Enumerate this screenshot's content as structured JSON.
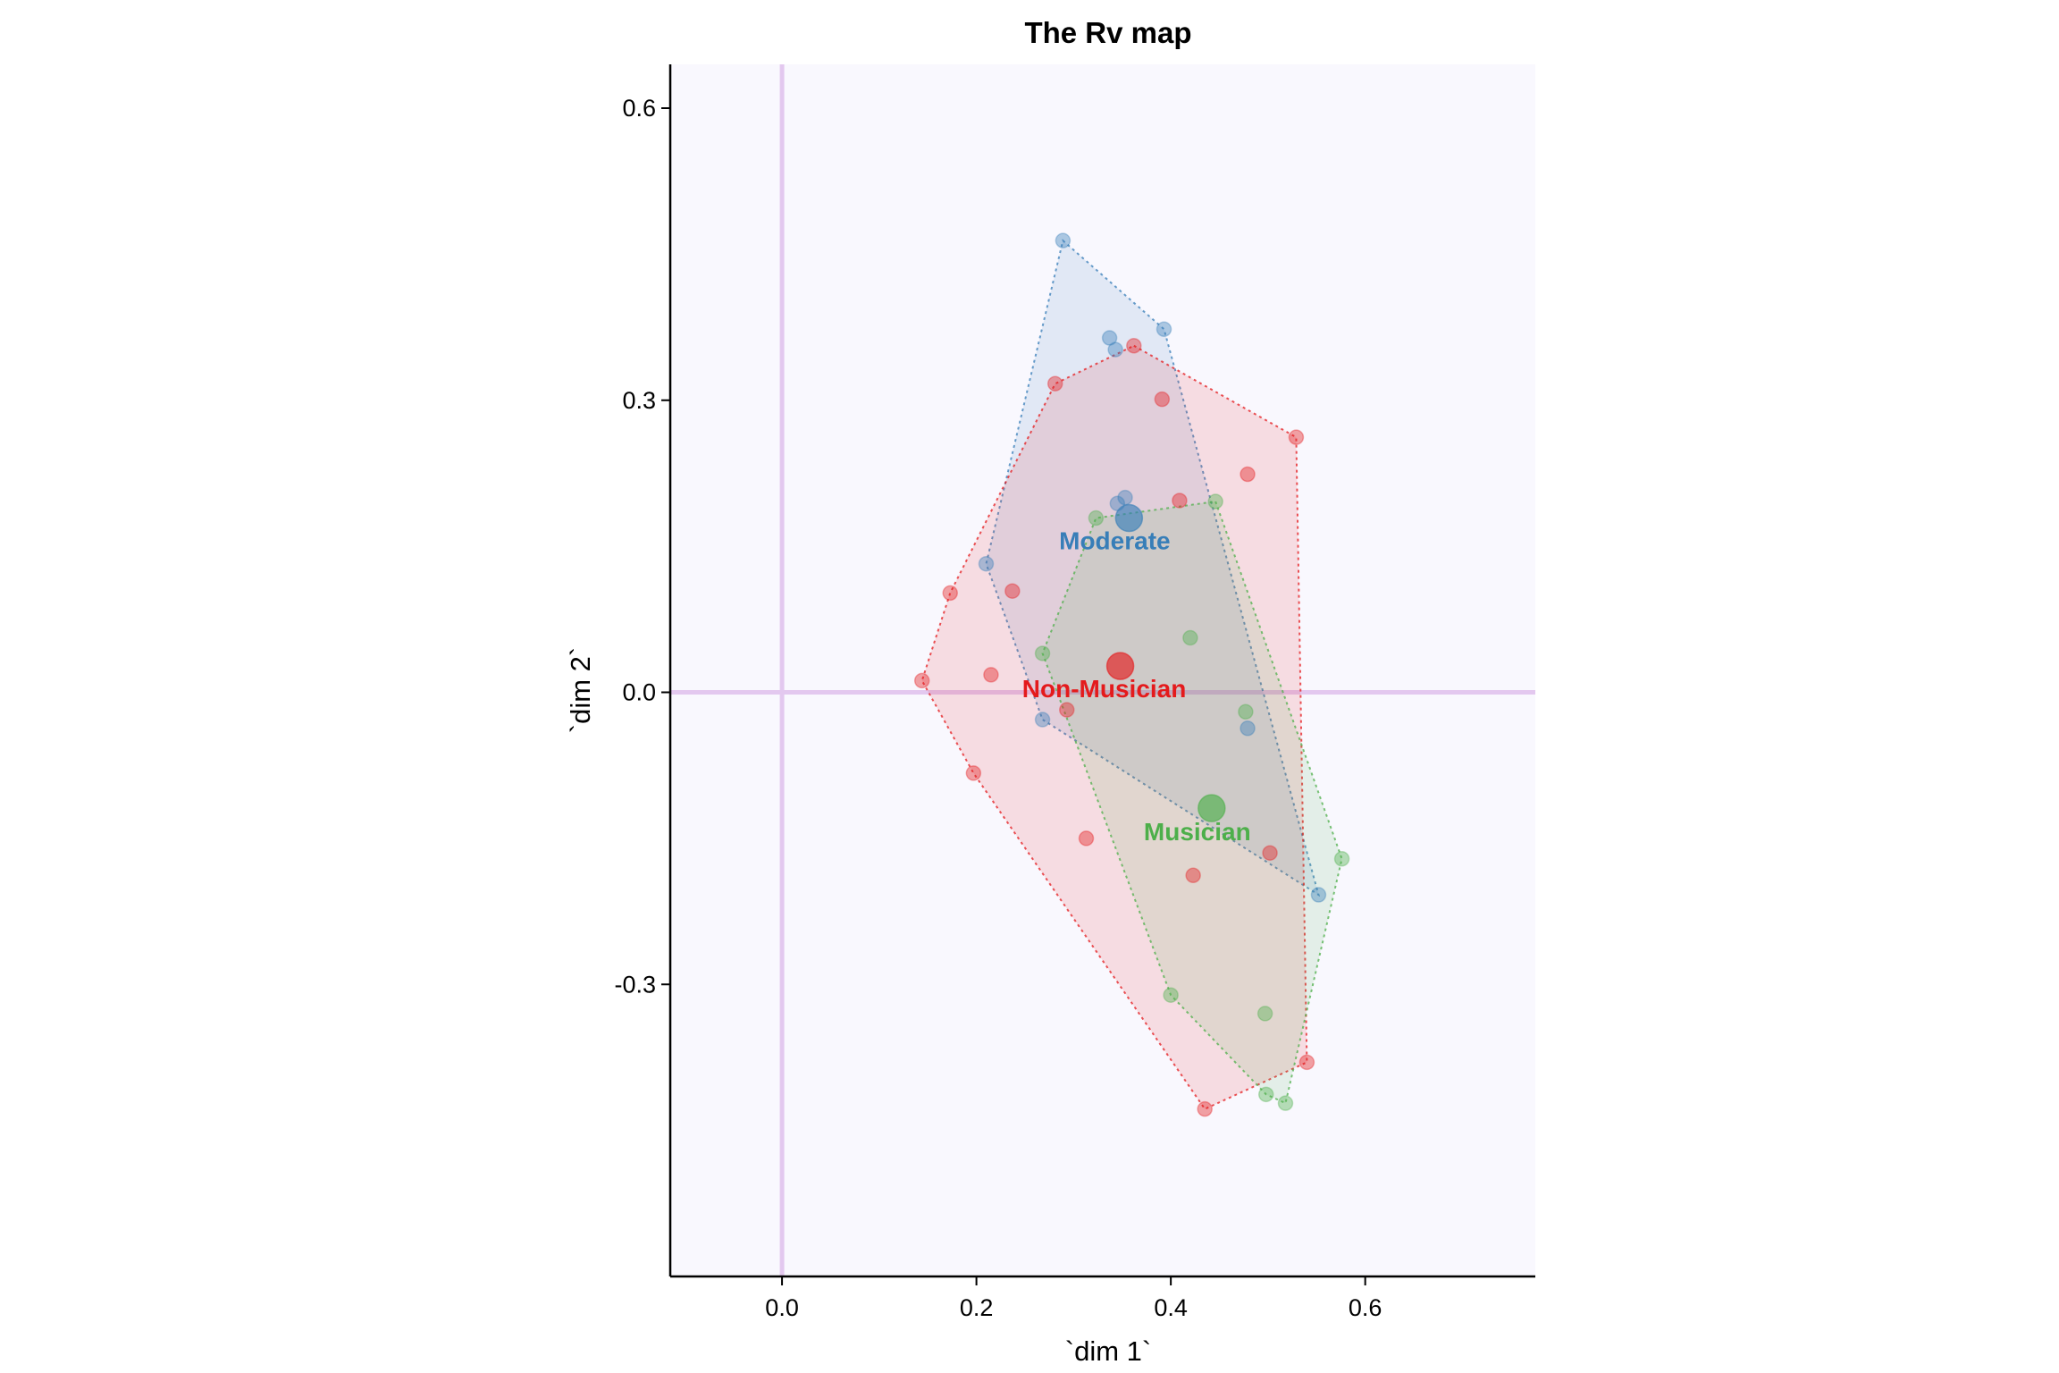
{
  "chart_data": {
    "type": "scatter",
    "title": "The Rv map",
    "xlabel": "`dim 1`",
    "ylabel": "`dim 2`",
    "xlim": [
      -0.115,
      0.775
    ],
    "ylim": [
      -0.6,
      0.645
    ],
    "xticks": [
      0.0,
      0.2,
      0.4,
      0.6
    ],
    "yticks": [
      -0.3,
      0.0,
      0.3,
      0.6
    ],
    "xtick_labels": [
      "0.0",
      "0.2",
      "0.4",
      "0.6"
    ],
    "ytick_labels": [
      "-0.3",
      "0.0",
      "0.3",
      "0.6"
    ],
    "reference_lines": {
      "x": 0,
      "y": 0,
      "color": "#e3c8ef"
    },
    "panel_background": "#f9f8fe",
    "series": [
      {
        "name": "Moderate",
        "color": "#377eb8",
        "centroid": [
          0.357,
          0.179
        ],
        "points": [
          [
            0.289,
            0.464
          ],
          [
            0.393,
            0.373
          ],
          [
            0.337,
            0.364
          ],
          [
            0.343,
            0.352
          ],
          [
            0.353,
            0.2
          ],
          [
            0.345,
            0.194
          ],
          [
            0.21,
            0.132
          ],
          [
            0.268,
            -0.028
          ],
          [
            0.479,
            -0.037
          ],
          [
            0.552,
            -0.208
          ]
        ],
        "hull": [
          [
            0.289,
            0.464
          ],
          [
            0.393,
            0.373
          ],
          [
            0.552,
            -0.208
          ],
          [
            0.268,
            -0.028
          ],
          [
            0.21,
            0.132
          ]
        ]
      },
      {
        "name": "Non-Musician",
        "color": "#e41a1c",
        "centroid": [
          0.348,
          0.027
        ],
        "points": [
          [
            0.362,
            0.356
          ],
          [
            0.281,
            0.317
          ],
          [
            0.391,
            0.301
          ],
          [
            0.529,
            0.262
          ],
          [
            0.479,
            0.224
          ],
          [
            0.409,
            0.197
          ],
          [
            0.173,
            0.102
          ],
          [
            0.237,
            0.104
          ],
          [
            0.215,
            0.018
          ],
          [
            0.144,
            0.012
          ],
          [
            0.293,
            -0.018
          ],
          [
            0.197,
            -0.083
          ],
          [
            0.313,
            -0.15
          ],
          [
            0.502,
            -0.165
          ],
          [
            0.423,
            -0.188
          ],
          [
            0.54,
            -0.38
          ],
          [
            0.435,
            -0.428
          ]
        ],
        "hull": [
          [
            0.362,
            0.356
          ],
          [
            0.529,
            0.262
          ],
          [
            0.54,
            -0.38
          ],
          [
            0.435,
            -0.428
          ],
          [
            0.197,
            -0.083
          ],
          [
            0.144,
            0.012
          ],
          [
            0.173,
            0.102
          ],
          [
            0.281,
            0.317
          ]
        ]
      },
      {
        "name": "Musician",
        "color": "#4daf4a",
        "centroid": [
          0.442,
          -0.119
        ],
        "points": [
          [
            0.446,
            0.196
          ],
          [
            0.323,
            0.179
          ],
          [
            0.42,
            0.056
          ],
          [
            0.268,
            0.04
          ],
          [
            0.477,
            -0.02
          ],
          [
            0.576,
            -0.171
          ],
          [
            0.4,
            -0.311
          ],
          [
            0.497,
            -0.33
          ],
          [
            0.498,
            -0.413
          ],
          [
            0.518,
            -0.422
          ]
        ],
        "hull": [
          [
            0.446,
            0.196
          ],
          [
            0.576,
            -0.171
          ],
          [
            0.518,
            -0.422
          ],
          [
            0.498,
            -0.413
          ],
          [
            0.4,
            -0.311
          ],
          [
            0.268,
            0.04
          ],
          [
            0.323,
            0.179
          ]
        ]
      }
    ]
  }
}
